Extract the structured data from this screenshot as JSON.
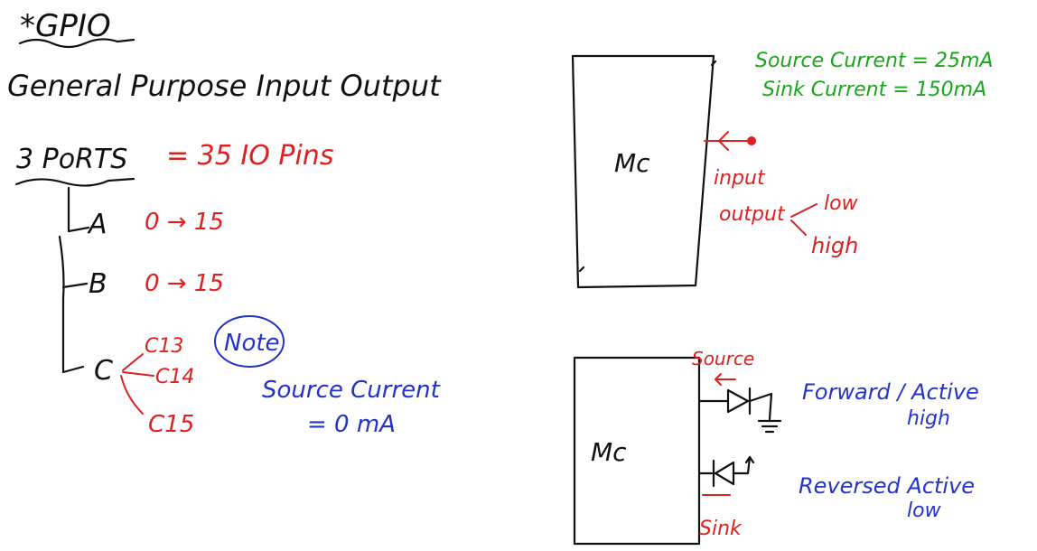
{
  "title": "*GPIO",
  "subtitle": "General Purpose Input Output",
  "ports": {
    "heading": "3 PoRTS",
    "pin_count": "= 35 IO Pins",
    "port_a": {
      "letter": "A",
      "range": "0 → 15"
    },
    "port_b": {
      "letter": "B",
      "range": "0 → 15"
    },
    "port_c": {
      "letter": "C",
      "pins": [
        "C13",
        "C14",
        "C15"
      ]
    }
  },
  "note": {
    "badge": "Note",
    "line1": "Source Current",
    "line2": "= 0 mA"
  },
  "mcu_top": {
    "label": "Mc",
    "input_label": "input",
    "output_label": "output",
    "low_label": "low",
    "high_label": "high",
    "source_current": "Source Current = 25mA",
    "sink_current": "Sink Current = 150mA"
  },
  "mcu_bottom": {
    "label": "Mc",
    "source_label": "Source",
    "sink_label": "Sink",
    "forward_line1": "Forward / Active",
    "forward_line2": "high",
    "reversed_line1": "Reversed Active",
    "reversed_line2": "low"
  },
  "colors": {
    "black": "#111111",
    "red": "#e02020",
    "blue": "#2233cc",
    "green": "#1aa51a",
    "maroon": "#8a1010"
  }
}
